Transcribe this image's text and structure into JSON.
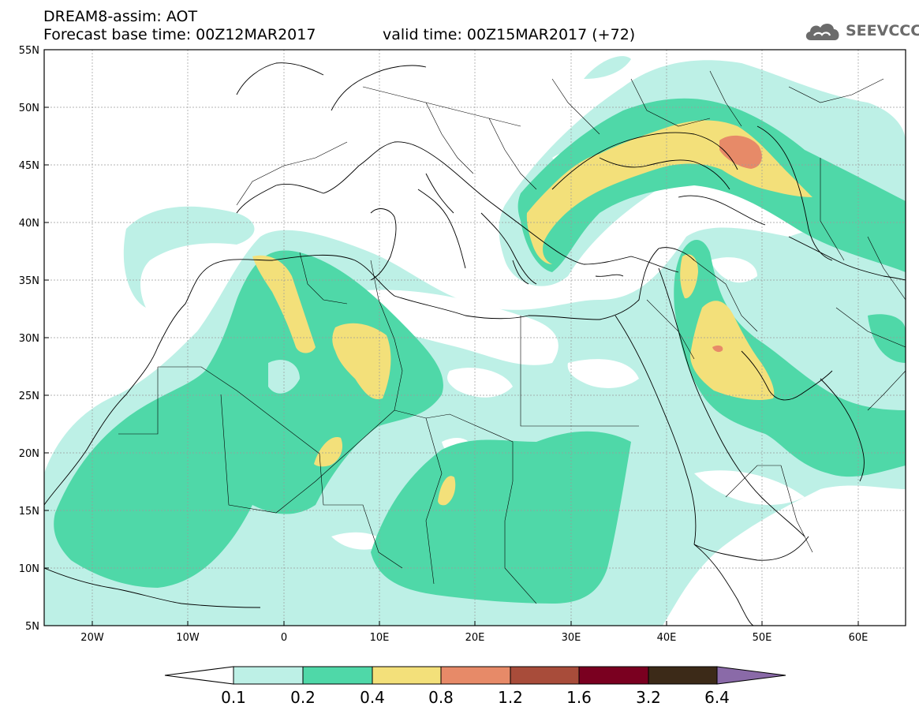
{
  "header": {
    "title_line1": "DREAM8-assim: AOT",
    "title_line2": "Forecast base time: 00Z12MAR2017",
    "valid_time": "valid time: 00Z15MAR2017 (+72)"
  },
  "logo": {
    "text": "SEEVCCC",
    "icon": "cloud-icon"
  },
  "map": {
    "lat_labels": [
      "55N",
      "50N",
      "45N",
      "40N",
      "35N",
      "30N",
      "25N",
      "20N",
      "15N",
      "10N",
      "5N"
    ],
    "lon_labels": [
      "20W",
      "10W",
      "0",
      "10E",
      "20E",
      "30E",
      "40E",
      "50E",
      "60E"
    ],
    "levels": [
      "0.1",
      "0.2",
      "0.4",
      "0.8",
      "1.2",
      "1.6",
      "3.2",
      "6.4"
    ],
    "colors": {
      "c01": "#bdf0e6",
      "c02": "#4fd8a8",
      "c04": "#f3e07a",
      "c08": "#e78a68",
      "c12": "#a84c3a",
      "c16": "#7a0020",
      "c32": "#3c2a18",
      "c64": "#8a6aa8"
    }
  }
}
